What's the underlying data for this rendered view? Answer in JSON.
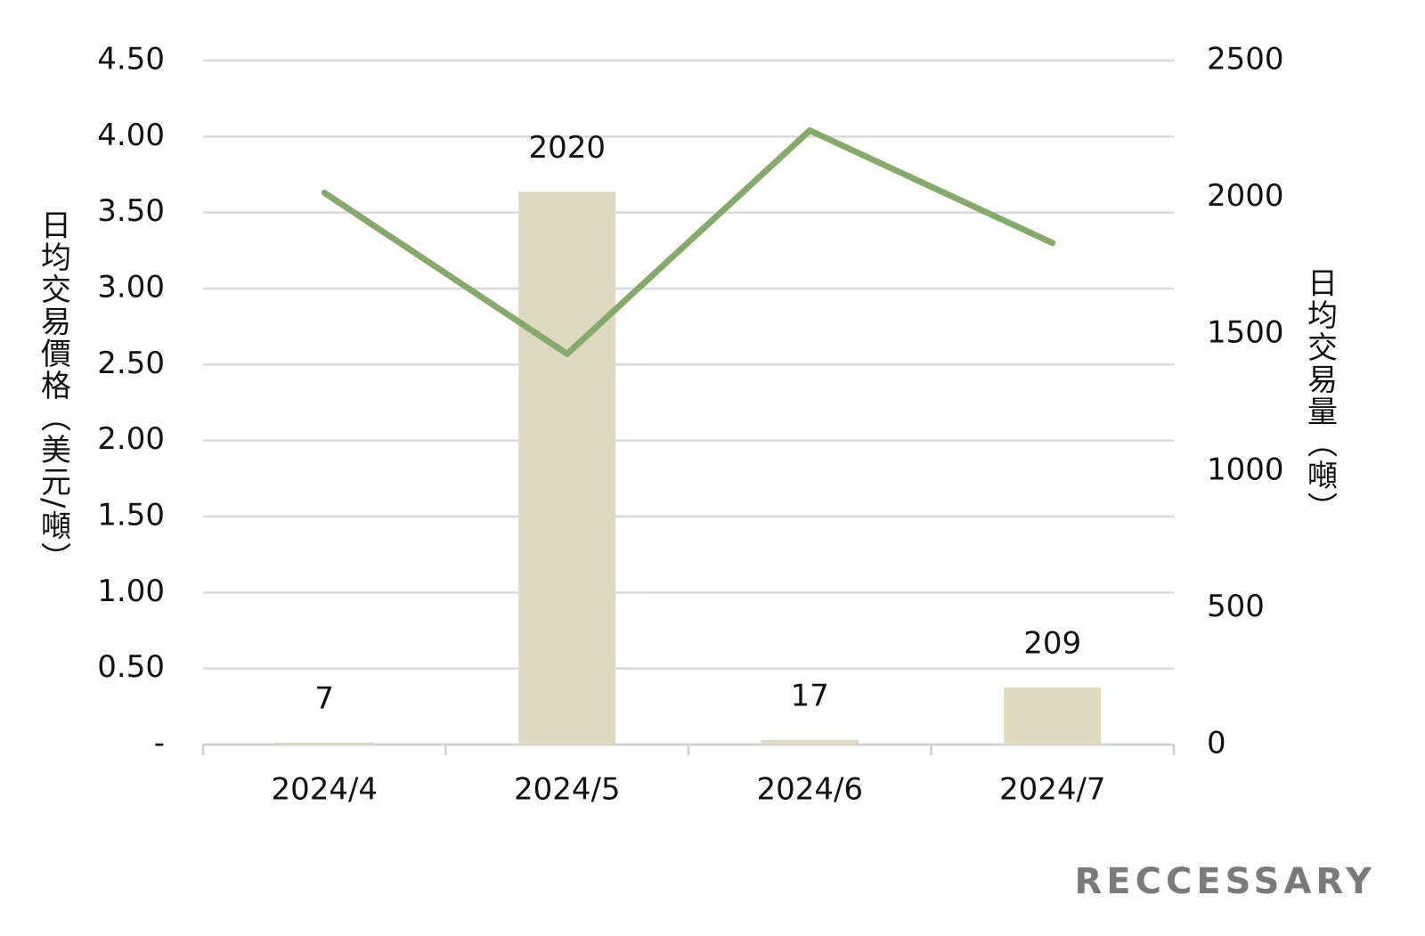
{
  "chart_data": {
    "type": "combo",
    "categories": [
      "2024/4",
      "2024/5",
      "2024/6",
      "2024/7"
    ],
    "series": [
      {
        "type": "bar",
        "axis": "y2",
        "color": "#ded9bf",
        "values": [
          7,
          2020,
          17,
          209
        ]
      },
      {
        "type": "line",
        "axis": "y",
        "color": "#86aa6b",
        "values": [
          3.63,
          2.57,
          4.04,
          3.3
        ]
      }
    ],
    "ylabel": "日均交易價格（美元/噸）",
    "y2label": "日均交易量（噸）",
    "ylim": [
      0,
      4.5
    ],
    "yticks": [
      {
        "value": 0,
        "label": "-"
      },
      {
        "value": 0.5,
        "label": "0.50"
      },
      {
        "value": 1,
        "label": "1.00"
      },
      {
        "value": 1.5,
        "label": "1.50"
      },
      {
        "value": 2,
        "label": "2.00"
      },
      {
        "value": 2.5,
        "label": "2.50"
      },
      {
        "value": 3,
        "label": "3.00"
      },
      {
        "value": 3.5,
        "label": "3.50"
      },
      {
        "value": 4,
        "label": "4.00"
      },
      {
        "value": 4.5,
        "label": "4.50"
      }
    ],
    "y2lim": [
      0,
      2500
    ],
    "y2ticks": [
      0,
      500,
      1000,
      1500,
      2000,
      2500
    ],
    "grid": true,
    "watermark": "RECCESSARY"
  }
}
